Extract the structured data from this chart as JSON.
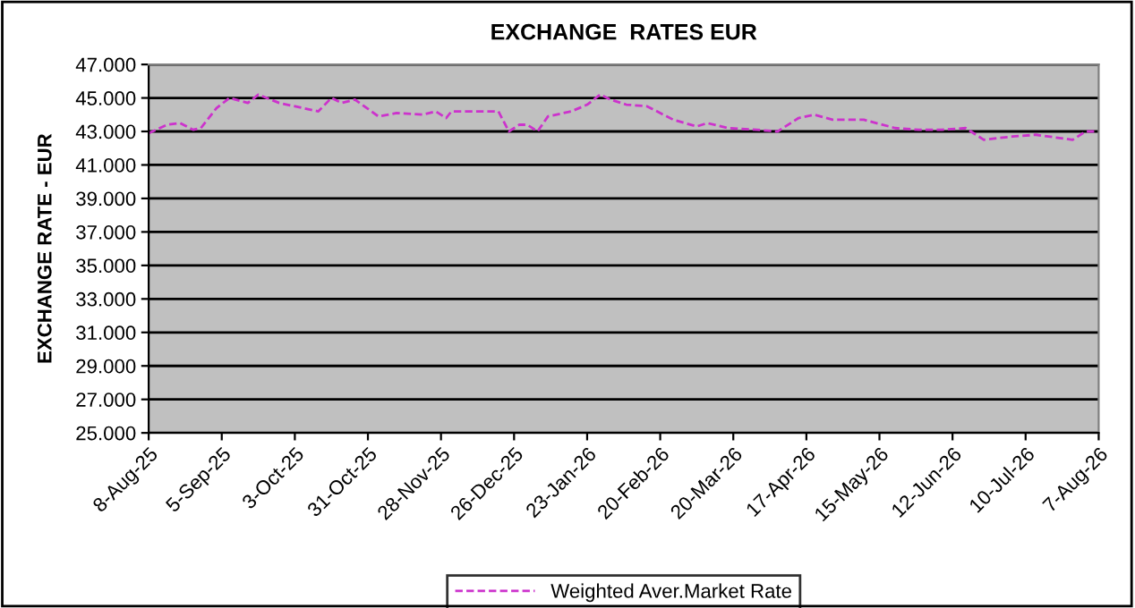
{
  "chart_data": {
    "type": "line",
    "title": "EXCHANGE  RATES EUR",
    "ylabel": "EXCHANGE RATE - EUR",
    "x": [
      "2025-08-08",
      "2025-08-15",
      "2025-08-20",
      "2025-08-25",
      "2025-08-28",
      "2025-09-03",
      "2025-09-08",
      "2025-09-15",
      "2025-09-19",
      "2025-09-27",
      "2025-10-06",
      "2025-10-12",
      "2025-10-17",
      "2025-10-21",
      "2025-10-26",
      "2025-11-04",
      "2025-11-11",
      "2025-11-21",
      "2025-11-26",
      "2025-11-30",
      "2025-12-02",
      "2025-12-16",
      "2025-12-20",
      "2025-12-24",
      "2025-12-28",
      "2025-12-31",
      "2026-01-04",
      "2026-01-08",
      "2026-01-17",
      "2026-01-23",
      "2026-01-28",
      "2026-02-01",
      "2026-02-07",
      "2026-02-15",
      "2026-02-25",
      "2026-03-06",
      "2026-03-10",
      "2026-03-18",
      "2026-03-29",
      "2026-04-06",
      "2026-04-14",
      "2026-04-20",
      "2026-04-27",
      "2026-05-09",
      "2026-05-21",
      "2026-05-30",
      "2026-06-08",
      "2026-06-17",
      "2026-06-24",
      "2026-07-05",
      "2026-07-14",
      "2026-07-28",
      "2026-08-02",
      "2026-08-06"
    ],
    "series": [
      {
        "name": "Weighted Aver.Market Rate",
        "color": "#cc33cc",
        "values": [
          42.9,
          43.4,
          43.5,
          43.1,
          43.2,
          44.4,
          45.0,
          44.7,
          45.2,
          44.7,
          44.4,
          44.2,
          45.0,
          44.7,
          44.9,
          43.9,
          44.1,
          44.0,
          44.2,
          43.8,
          44.2,
          44.2,
          44.2,
          43.0,
          43.4,
          43.4,
          43.0,
          43.9,
          44.2,
          44.6,
          45.2,
          44.9,
          44.6,
          44.5,
          43.7,
          43.3,
          43.5,
          43.2,
          43.1,
          43.0,
          43.8,
          44.0,
          43.7,
          43.7,
          43.2,
          43.1,
          43.1,
          43.2,
          42.5,
          42.7,
          42.8,
          42.5,
          43.0,
          43.0
        ]
      }
    ],
    "xlim": [
      "2025-08-08",
      "2026-08-07"
    ],
    "xticks": [
      {
        "value": "2025-08-08",
        "label": "8-Aug-25"
      },
      {
        "value": "2025-09-05",
        "label": "5-Sep-25"
      },
      {
        "value": "2025-10-03",
        "label": "3-Oct-25"
      },
      {
        "value": "2025-10-31",
        "label": "31-Oct-25"
      },
      {
        "value": "2025-11-28",
        "label": "28-Nov-25"
      },
      {
        "value": "2025-12-26",
        "label": "26-Dec-25"
      },
      {
        "value": "2026-01-23",
        "label": "23-Jan-26"
      },
      {
        "value": "2026-02-20",
        "label": "20-Feb-26"
      },
      {
        "value": "2026-03-20",
        "label": "20-Mar-26"
      },
      {
        "value": "2026-04-17",
        "label": "17-Apr-26"
      },
      {
        "value": "2026-05-15",
        "label": "15-May-26"
      },
      {
        "value": "2026-06-12",
        "label": "12-Jun-26"
      },
      {
        "value": "2026-07-10",
        "label": "10-Jul-26"
      },
      {
        "value": "2026-08-07",
        "label": "7-Aug-26"
      }
    ],
    "ylim": [
      25,
      47
    ],
    "yticks": [
      {
        "value": 25,
        "label": "25.000"
      },
      {
        "value": 27,
        "label": "27.000"
      },
      {
        "value": 29,
        "label": "29.000"
      },
      {
        "value": 31,
        "label": "31.000"
      },
      {
        "value": 33,
        "label": "33.000"
      },
      {
        "value": 35,
        "label": "35.000"
      },
      {
        "value": 37,
        "label": "37.000"
      },
      {
        "value": 39,
        "label": "39.000"
      },
      {
        "value": 41,
        "label": "41.000"
      },
      {
        "value": 43,
        "label": "43.000"
      },
      {
        "value": 45,
        "label": "45.000"
      },
      {
        "value": 47,
        "label": "47.000"
      }
    ],
    "grid": "y",
    "legend": "bottom",
    "line_style": "dashed",
    "marker": "none"
  }
}
